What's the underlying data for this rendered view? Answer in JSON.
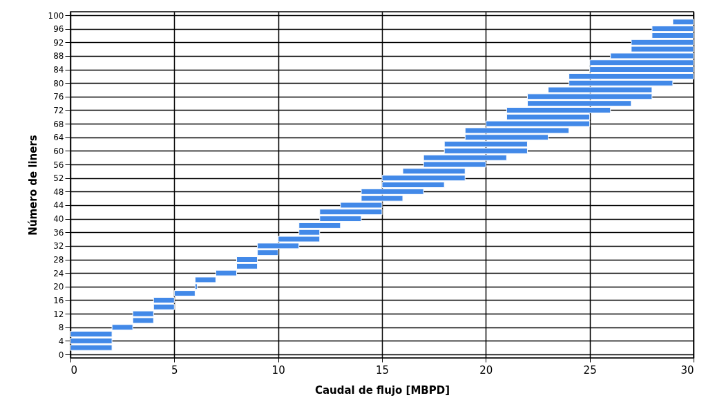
{
  "chart_data": {
    "type": "bar",
    "orientation": "horizontal",
    "xlabel": "Caudal de flujo [MBPD]",
    "ylabel": "Número de liners",
    "x": [
      2,
      4,
      6,
      8,
      10,
      12,
      14,
      16,
      18,
      20,
      22,
      24,
      26,
      28,
      30,
      32,
      34,
      36,
      38,
      40,
      42,
      44,
      46,
      48,
      50,
      52,
      54,
      56,
      58,
      60,
      62,
      64,
      66,
      68,
      70,
      72,
      74,
      76,
      78,
      80,
      82,
      84,
      86,
      88,
      90,
      92,
      94,
      96,
      98
    ],
    "base": [
      0,
      0,
      0,
      2,
      3,
      3,
      4,
      4,
      5,
      6,
      6,
      7,
      8,
      8,
      9,
      9,
      10,
      11,
      11,
      12,
      12,
      13,
      14,
      14,
      15,
      15,
      16,
      17,
      17,
      18,
      18,
      19,
      19,
      20,
      21,
      21,
      22,
      22,
      23,
      24,
      24,
      25,
      25,
      26,
      27,
      27,
      28,
      28,
      29
    ],
    "values": [
      2,
      2,
      2,
      1,
      1,
      1,
      1,
      1,
      1,
      0.1,
      1,
      1,
      1,
      1,
      1,
      2,
      2,
      1,
      2,
      2,
      3,
      2,
      2,
      3,
      3,
      4,
      3,
      3,
      4,
      4,
      4,
      4,
      5,
      5,
      4,
      5,
      5,
      6,
      5,
      5,
      6,
      5,
      5,
      4,
      3,
      3,
      2,
      2,
      1
    ],
    "color": "#4289e8",
    "xlim": [
      0,
      30
    ],
    "xticks": [
      0,
      5,
      10,
      15,
      20,
      25,
      30
    ],
    "ylim": [
      0,
      100
    ],
    "yticks": [
      0,
      4,
      8,
      12,
      16,
      20,
      24,
      28,
      32,
      36,
      40,
      44,
      48,
      52,
      56,
      60,
      64,
      68,
      72,
      76,
      80,
      84,
      88,
      92,
      96,
      100
    ],
    "grid": true
  }
}
